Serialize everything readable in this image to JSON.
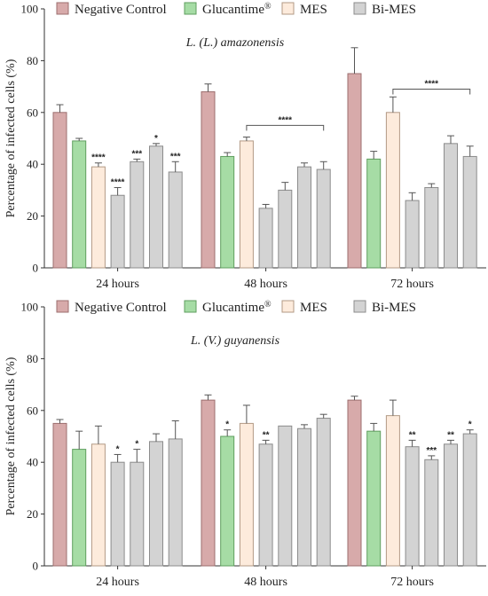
{
  "colors": {
    "Negative Control": {
      "fill": "#d7aaaa",
      "stroke": "#9c6f6f"
    },
    "Glucantime": {
      "fill": "#a6dca5",
      "stroke": "#5f9e5e"
    },
    "MES": {
      "fill": "#fdebdc",
      "stroke": "#b29a85"
    },
    "Bi-MES": {
      "fill": "#d3d3d3",
      "stroke": "#8c8c8c"
    }
  },
  "chart_data": [
    {
      "type": "bar",
      "title": "L. (L.) amazonensis",
      "ylabel": "Percentage of infected cells (%)",
      "ylim": [
        0,
        100
      ],
      "yticks": [
        0,
        20,
        40,
        60,
        80,
        100
      ],
      "legend": {
        "position": "top",
        "items": [
          {
            "label": "Negative Control",
            "series": "Negative Control"
          },
          {
            "label": "Glucantime",
            "sup": "®",
            "series": "Glucantime"
          },
          {
            "label": "MES",
            "series": "MES"
          },
          {
            "label": "Bi-MES",
            "series": "Bi-MES"
          }
        ]
      },
      "categories": [
        "24 hours",
        "48 hours",
        "72 hours"
      ],
      "groups": [
        {
          "category": "24 hours",
          "bars": [
            {
              "series": "Negative Control",
              "value": 60,
              "error": 3,
              "sig": ""
            },
            {
              "series": "Glucantime",
              "value": 49,
              "error": 1,
              "sig": ""
            },
            {
              "series": "MES",
              "value": 39,
              "error": 1.5,
              "sig": "****"
            },
            {
              "series": "Bi-MES",
              "value": 28,
              "error": 3,
              "sig": "****"
            },
            {
              "series": "Bi-MES",
              "value": 41,
              "error": 1,
              "sig": "***"
            },
            {
              "series": "Bi-MES",
              "value": 47,
              "error": 1,
              "sig": "*"
            },
            {
              "series": "Bi-MES",
              "value": 37,
              "error": 4,
              "sig": "***"
            }
          ]
        },
        {
          "category": "48 hours",
          "bars": [
            {
              "series": "Negative Control",
              "value": 68,
              "error": 3,
              "sig": ""
            },
            {
              "series": "Glucantime",
              "value": 43,
              "error": 1.5,
              "sig": ""
            },
            {
              "series": "MES",
              "value": 49,
              "error": 1.5,
              "sig": ""
            },
            {
              "series": "Bi-MES",
              "value": 23,
              "error": 1.5,
              "sig": ""
            },
            {
              "series": "Bi-MES",
              "value": 30,
              "error": 3,
              "sig": ""
            },
            {
              "series": "Bi-MES",
              "value": 39,
              "error": 1.5,
              "sig": ""
            },
            {
              "series": "Bi-MES",
              "value": 38,
              "error": 3,
              "sig": ""
            }
          ],
          "bracket": {
            "from": 2,
            "to": 6,
            "y": 55,
            "sig": "****"
          }
        },
        {
          "category": "72 hours",
          "bars": [
            {
              "series": "Negative Control",
              "value": 75,
              "error": 10,
              "sig": ""
            },
            {
              "series": "Glucantime",
              "value": 42,
              "error": 3,
              "sig": ""
            },
            {
              "series": "MES",
              "value": 60,
              "error": 6,
              "sig": ""
            },
            {
              "series": "Bi-MES",
              "value": 26,
              "error": 3,
              "sig": ""
            },
            {
              "series": "Bi-MES",
              "value": 31,
              "error": 1.5,
              "sig": ""
            },
            {
              "series": "Bi-MES",
              "value": 48,
              "error": 3,
              "sig": ""
            },
            {
              "series": "Bi-MES",
              "value": 43,
              "error": 4,
              "sig": ""
            }
          ],
          "bracket": {
            "from": 2,
            "to": 6,
            "y": 69,
            "sig": "****"
          }
        }
      ]
    },
    {
      "type": "bar",
      "title": "L. (V.) guyanensis",
      "ylabel": "Percentage of infected cells (%)",
      "ylim": [
        0,
        100
      ],
      "yticks": [
        0,
        20,
        40,
        60,
        80,
        100
      ],
      "legend": {
        "position": "top",
        "items": [
          {
            "label": "Negative Control",
            "series": "Negative Control"
          },
          {
            "label": "Glucantime",
            "sup": "®",
            "series": "Glucantime"
          },
          {
            "label": "MES",
            "series": "MES"
          },
          {
            "label": "Bi-MES",
            "series": "Bi-MES"
          }
        ]
      },
      "categories": [
        "24 hours",
        "48 hours",
        "72 hours"
      ],
      "groups": [
        {
          "category": "24 hours",
          "bars": [
            {
              "series": "Negative Control",
              "value": 55,
              "error": 1.5,
              "sig": ""
            },
            {
              "series": "Glucantime",
              "value": 45,
              "error": 7,
              "sig": ""
            },
            {
              "series": "MES",
              "value": 47,
              "error": 7,
              "sig": ""
            },
            {
              "series": "Bi-MES",
              "value": 40,
              "error": 3,
              "sig": "*"
            },
            {
              "series": "Bi-MES",
              "value": 40,
              "error": 5,
              "sig": "*"
            },
            {
              "series": "Bi-MES",
              "value": 48,
              "error": 3,
              "sig": ""
            },
            {
              "series": "Bi-MES",
              "value": 49,
              "error": 7,
              "sig": ""
            }
          ]
        },
        {
          "category": "48 hours",
          "bars": [
            {
              "series": "Negative Control",
              "value": 64,
              "error": 2,
              "sig": ""
            },
            {
              "series": "Glucantime",
              "value": 50,
              "error": 2.5,
              "sig": "*"
            },
            {
              "series": "MES",
              "value": 55,
              "error": 7,
              "sig": ""
            },
            {
              "series": "Bi-MES",
              "value": 47,
              "error": 1.5,
              "sig": "**"
            },
            {
              "series": "Bi-MES",
              "value": 54,
              "error": 0,
              "sig": ""
            },
            {
              "series": "Bi-MES",
              "value": 53,
              "error": 1.5,
              "sig": ""
            },
            {
              "series": "Bi-MES",
              "value": 57,
              "error": 1.5,
              "sig": ""
            }
          ]
        },
        {
          "category": "72 hours",
          "bars": [
            {
              "series": "Negative Control",
              "value": 64,
              "error": 1.5,
              "sig": ""
            },
            {
              "series": "Glucantime",
              "value": 52,
              "error": 3,
              "sig": ""
            },
            {
              "series": "MES",
              "value": 58,
              "error": 6,
              "sig": ""
            },
            {
              "series": "Bi-MES",
              "value": 46,
              "error": 2.5,
              "sig": "**"
            },
            {
              "series": "Bi-MES",
              "value": 41,
              "error": 1.5,
              "sig": "***"
            },
            {
              "series": "Bi-MES",
              "value": 47,
              "error": 1.5,
              "sig": "**"
            },
            {
              "series": "Bi-MES",
              "value": 51,
              "error": 1.5,
              "sig": "*"
            }
          ]
        }
      ]
    }
  ]
}
